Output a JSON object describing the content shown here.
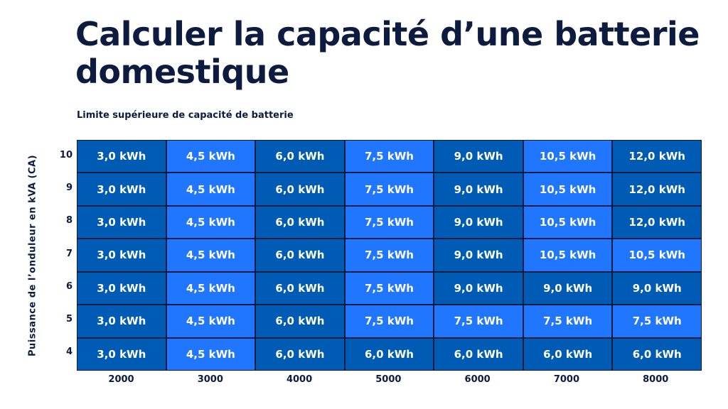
{
  "title": "Calculer la capacité d’une batterie domestique",
  "chart_data": {
    "type": "table",
    "subtitle": "Limite supérieure de capacité de batterie",
    "ylabel": "Puissance de l’onduleur en kVA (CA)",
    "xlabel": "",
    "columns": [
      "2000",
      "3000",
      "4000",
      "5000",
      "6000",
      "7000",
      "8000"
    ],
    "rows": [
      "10",
      "9",
      "8",
      "7",
      "6",
      "5",
      "4"
    ],
    "values": [
      [
        "3,0 kWh",
        "4,5 kWh",
        "6,0 kWh",
        "7,5 kWh",
        "9,0 kWh",
        "10,5 kWh",
        "12,0 kWh"
      ],
      [
        "3,0 kWh",
        "4,5 kWh",
        "6,0 kWh",
        "7,5 kWh",
        "9,0 kWh",
        "10,5 kWh",
        "12,0 kWh"
      ],
      [
        "3,0 kWh",
        "4,5 kWh",
        "6,0 kWh",
        "7,5 kWh",
        "9,0 kWh",
        "10,5 kWh",
        "12,0 kWh"
      ],
      [
        "3,0 kWh",
        "4,5 kWh",
        "6,0 kWh",
        "7,5 kWh",
        "9,0 kWh",
        "10,5 kWh",
        "10,5 kWh"
      ],
      [
        "3,0 kWh",
        "4,5 kWh",
        "6,0 kWh",
        "7,5 kWh",
        "9,0 kWh",
        "9,0 kWh",
        "9,0 kWh"
      ],
      [
        "3,0 kWh",
        "4,5 kWh",
        "6,0 kWh",
        "7,5 kWh",
        "7,5 kWh",
        "7,5 kWh",
        "7,5 kWh"
      ],
      [
        "3,0 kWh",
        "4,5 kWh",
        "6,0 kWh",
        "6,0 kWh",
        "6,0 kWh",
        "6,0 kWh",
        "6,0 kWh"
      ]
    ],
    "shading": [
      [
        "D",
        "L",
        "D",
        "L",
        "D",
        "L",
        "D"
      ],
      [
        "D",
        "L",
        "D",
        "L",
        "D",
        "L",
        "D"
      ],
      [
        "D",
        "L",
        "D",
        "L",
        "D",
        "L",
        "D"
      ],
      [
        "D",
        "L",
        "D",
        "L",
        "D",
        "L",
        "L"
      ],
      [
        "D",
        "L",
        "D",
        "L",
        "D",
        "D",
        "D"
      ],
      [
        "D",
        "L",
        "D",
        "L",
        "L",
        "L",
        "L"
      ],
      [
        "D",
        "L",
        "D",
        "D",
        "D",
        "D",
        "D"
      ]
    ],
    "colors": {
      "D": "#005bb5",
      "L": "#2176ff",
      "text": "#0d1b3e"
    }
  }
}
